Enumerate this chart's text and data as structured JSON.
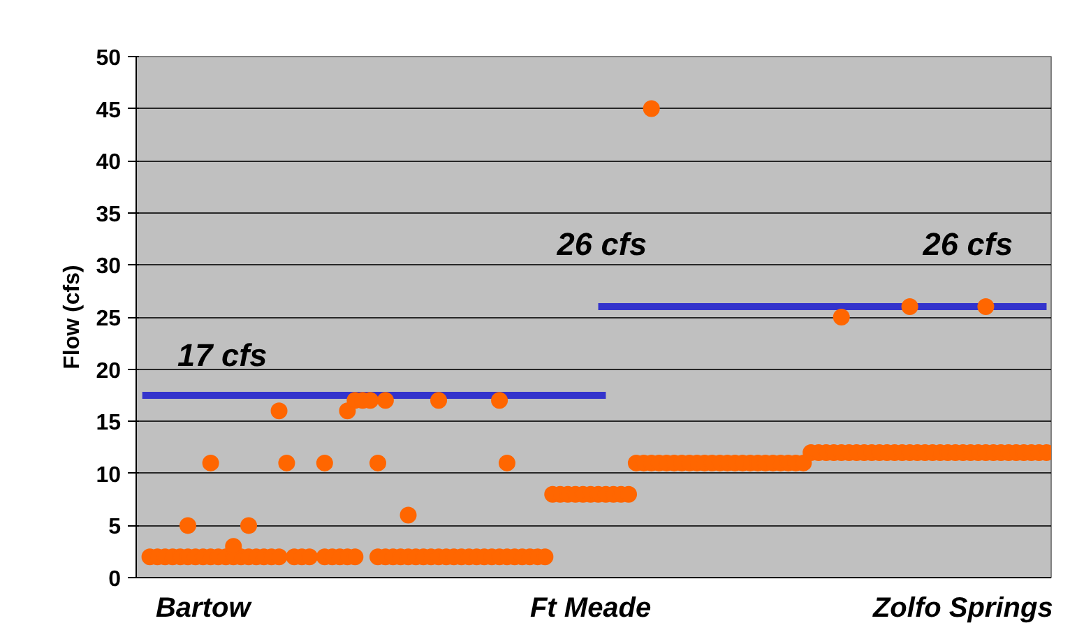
{
  "chart_data": {
    "type": "scatter",
    "ylabel": "Flow (cfs)",
    "ylim": [
      0,
      50
    ],
    "yticks": [
      0,
      5,
      10,
      15,
      20,
      25,
      30,
      35,
      40,
      45,
      50
    ],
    "grid": "y",
    "marker": "circle",
    "categories": [
      null,
      null,
      null,
      null,
      null,
      null,
      null,
      null,
      "Bartow",
      null,
      null,
      null,
      null,
      null,
      null,
      null,
      null,
      null,
      null,
      null,
      null,
      null,
      null,
      null,
      null,
      null,
      null,
      null,
      null,
      null,
      null,
      null,
      null,
      null,
      null,
      null,
      null,
      null,
      null,
      null,
      null,
      null,
      null,
      null,
      null,
      null,
      null,
      null,
      null,
      null,
      null,
      null,
      null,
      null,
      null,
      null,
      null,
      null,
      null,
      "Ft Meade",
      null,
      null,
      null,
      null,
      null,
      null,
      null,
      null,
      null,
      null,
      null,
      null,
      null,
      null,
      null,
      null,
      null,
      null,
      null,
      null,
      null,
      null,
      null,
      null,
      null,
      null,
      null,
      null,
      null,
      null,
      null,
      null,
      null,
      null,
      null,
      null,
      null,
      null,
      null,
      null,
      null,
      null,
      null,
      null,
      null,
      null,
      null,
      null,
      "Zolfo Springs",
      null,
      null,
      null,
      null,
      null,
      null,
      null,
      null,
      null,
      null,
      null
    ],
    "series": [
      {
        "color": "#ff6600",
        "values": [
          null,
          2,
          2,
          2,
          2,
          2,
          2,
          2,
          2,
          2,
          2,
          2,
          2,
          2,
          2,
          2,
          2,
          2,
          2,
          null,
          2,
          2,
          2,
          null,
          2,
          2,
          2,
          2,
          2,
          null,
          null,
          2,
          2,
          2,
          2,
          2,
          2,
          2,
          2,
          2,
          2,
          2,
          2,
          2,
          2,
          2,
          2,
          2,
          2,
          2,
          2,
          2,
          2,
          2,
          8,
          8,
          8,
          8,
          8,
          8,
          8,
          8,
          8,
          8,
          8,
          11,
          11,
          11,
          11,
          11,
          11,
          11,
          11,
          11,
          11,
          11,
          11,
          11,
          11,
          11,
          11,
          11,
          11,
          11,
          11,
          11,
          11,
          11,
          12,
          12,
          12,
          12,
          12,
          12,
          12,
          12,
          12,
          12,
          12,
          12,
          12,
          12,
          12,
          12,
          12,
          12,
          12,
          12,
          12,
          12,
          12,
          12,
          12,
          12,
          12,
          12,
          12,
          12,
          12,
          12
        ]
      },
      {
        "color": "#ff6600",
        "values": [
          null,
          null,
          null,
          null,
          null,
          null,
          5,
          null,
          null,
          11,
          null,
          null,
          3,
          null,
          5,
          null,
          null,
          null,
          16,
          11,
          null,
          null,
          null,
          null,
          11,
          null,
          null,
          16,
          17,
          17,
          17,
          11,
          17,
          null,
          null,
          6,
          null,
          null,
          null,
          17,
          null,
          null,
          null,
          null,
          null,
          null,
          null,
          17,
          11,
          null,
          null,
          null,
          null,
          null,
          null,
          null,
          null,
          null,
          null,
          null,
          null,
          null,
          null,
          null,
          null,
          null,
          null,
          45,
          null,
          null,
          null,
          null,
          null,
          null,
          null,
          null,
          null,
          null,
          null,
          null,
          null,
          null,
          null,
          null,
          null,
          null,
          null,
          null,
          null,
          null,
          null,
          null,
          25,
          null,
          null,
          null,
          null,
          null,
          null,
          null,
          null,
          26,
          null,
          null,
          null,
          null,
          null,
          null,
          null,
          null,
          null,
          26,
          null,
          null,
          null,
          null,
          null,
          null,
          null,
          null
        ]
      },
      {
        "type": "line",
        "marker": "none",
        "color": "#3333cc",
        "values": [
          17.5,
          17.5,
          17.5,
          17.5,
          17.5,
          17.5,
          17.5,
          17.5,
          17.5,
          17.5,
          17.5,
          17.5,
          17.5,
          17.5,
          17.5,
          17.5,
          17.5,
          17.5,
          17.5,
          17.5,
          17.5,
          17.5,
          17.5,
          17.5,
          17.5,
          17.5,
          17.5,
          17.5,
          17.5,
          17.5,
          17.5,
          17.5,
          17.5,
          17.5,
          17.5,
          17.5,
          17.5,
          17.5,
          17.5,
          17.5,
          17.5,
          17.5,
          17.5,
          17.5,
          17.5,
          17.5,
          17.5,
          17.5,
          17.5,
          17.5,
          17.5,
          17.5,
          17.5,
          17.5,
          17.5,
          17.5,
          17.5,
          17.5,
          17.5,
          17.5,
          17.5,
          17.5,
          null,
          null,
          null,
          null,
          null,
          null,
          null,
          null,
          null,
          null,
          null,
          null,
          null,
          null,
          null,
          null,
          null,
          null,
          null,
          null,
          null,
          null,
          null,
          null,
          null,
          null,
          null,
          null,
          null,
          null,
          null,
          null,
          null,
          null,
          null,
          null,
          null,
          null,
          null,
          null,
          null,
          null,
          null,
          null,
          null,
          null,
          null,
          null,
          null,
          null,
          null,
          null,
          null,
          null,
          null,
          null,
          null,
          null
        ]
      },
      {
        "type": "line",
        "marker": "none",
        "color": "#3333cc",
        "values": [
          null,
          null,
          null,
          null,
          null,
          null,
          null,
          null,
          null,
          null,
          null,
          null,
          null,
          null,
          null,
          null,
          null,
          null,
          null,
          null,
          null,
          null,
          null,
          null,
          null,
          null,
          null,
          null,
          null,
          null,
          null,
          null,
          null,
          null,
          null,
          null,
          null,
          null,
          null,
          null,
          null,
          null,
          null,
          null,
          null,
          null,
          null,
          null,
          null,
          null,
          null,
          null,
          null,
          null,
          null,
          null,
          null,
          null,
          null,
          null,
          26,
          26,
          26,
          26,
          26,
          26,
          26,
          26,
          26,
          26,
          26,
          26,
          26,
          26,
          26,
          26,
          26,
          26,
          26,
          26,
          26,
          26,
          26,
          26,
          26,
          26,
          26,
          26,
          26,
          26,
          26,
          26,
          26,
          26,
          26,
          26,
          26,
          26,
          26,
          26,
          26,
          26,
          26,
          26,
          26,
          26,
          26,
          26,
          26,
          26,
          26,
          26,
          26,
          26,
          26,
          26,
          26,
          26,
          26,
          26
        ]
      }
    ],
    "annotations": [
      "17 cfs",
      "26 cfs",
      "26 cfs"
    ]
  }
}
